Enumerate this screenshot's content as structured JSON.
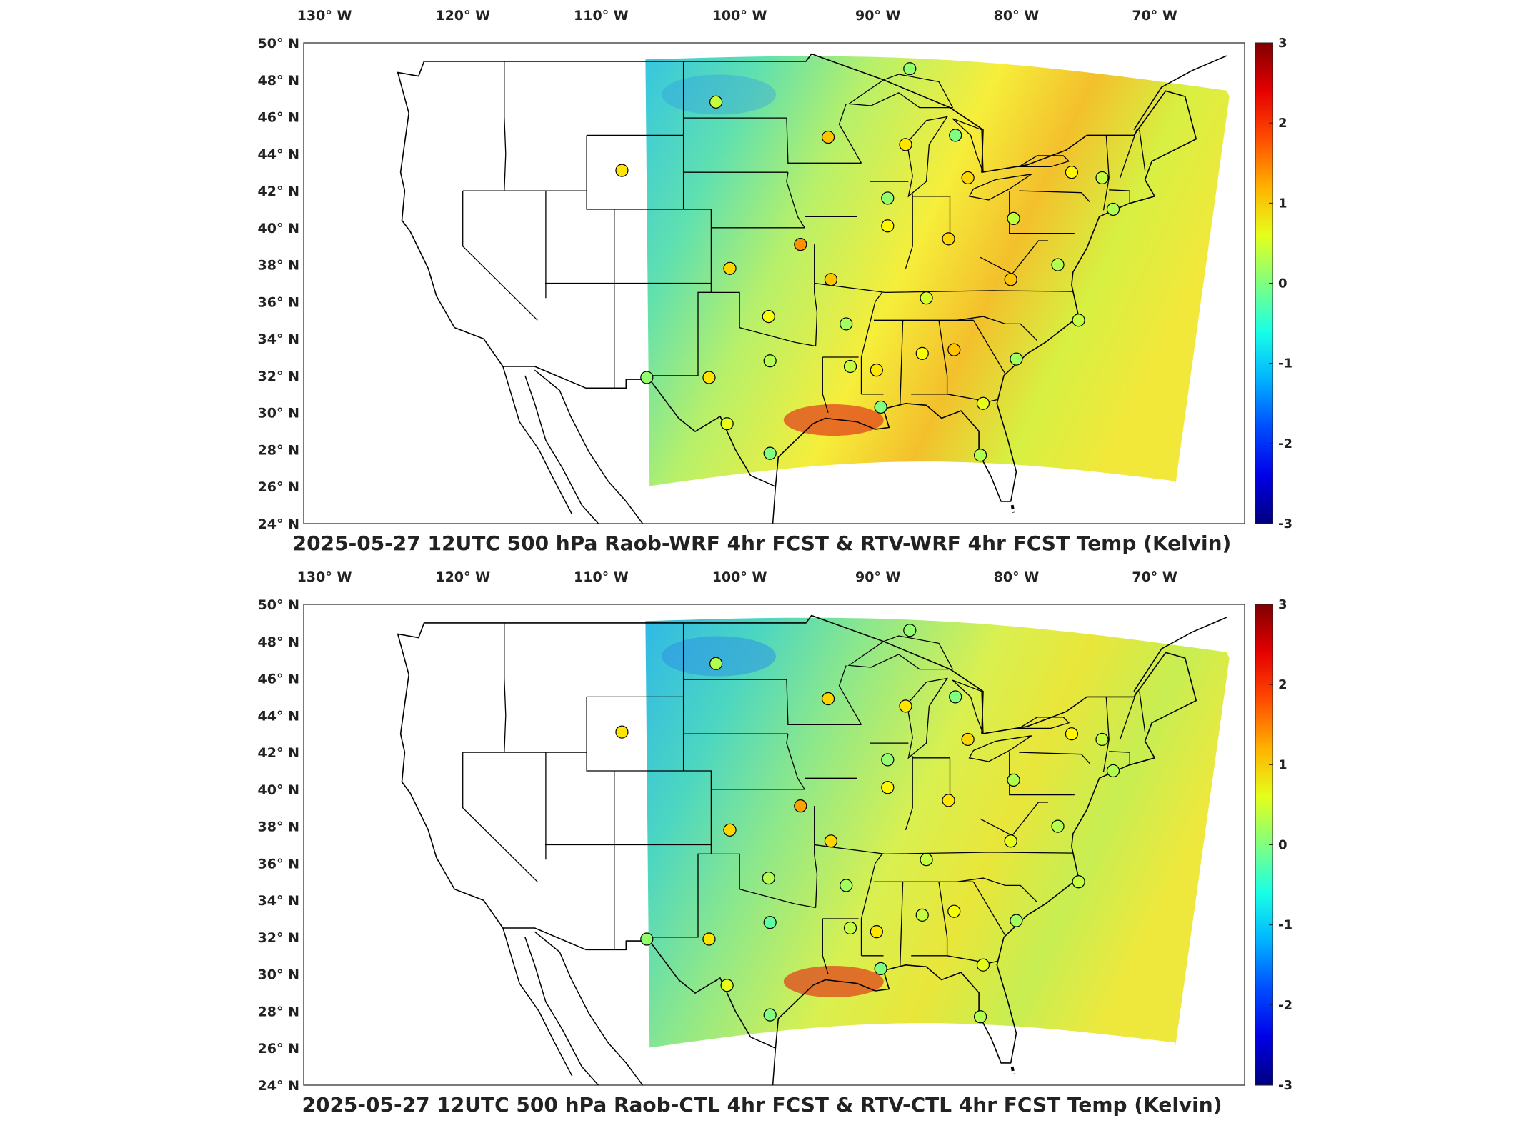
{
  "panels": [
    {
      "title": "2025-05-27 12UTC 500 hPa Raob-WRF 4hr FCST & RTV-WRF 4hr FCST Temp (Kelvin)",
      "stations": [
        {
          "lon": -101.7,
          "lat": 46.8,
          "v": 0.4
        },
        {
          "lon": -108.5,
          "lat": 43.1,
          "v": 0.9
        },
        {
          "lon": -93.6,
          "lat": 44.9,
          "v": 1.1
        },
        {
          "lon": -87.7,
          "lat": 48.6,
          "v": 0.1
        },
        {
          "lon": -88.0,
          "lat": 44.5,
          "v": 0.9
        },
        {
          "lon": -84.4,
          "lat": 45.0,
          "v": 0.0
        },
        {
          "lon": -83.5,
          "lat": 42.7,
          "v": 1.0
        },
        {
          "lon": -76.0,
          "lat": 43.0,
          "v": 0.8
        },
        {
          "lon": -73.8,
          "lat": 42.7,
          "v": 0.4
        },
        {
          "lon": -73.0,
          "lat": 41.0,
          "v": 0.3
        },
        {
          "lon": -89.3,
          "lat": 41.6,
          "v": 0.1
        },
        {
          "lon": -89.3,
          "lat": 40.1,
          "v": 0.8
        },
        {
          "lon": -95.6,
          "lat": 39.1,
          "v": 1.4
        },
        {
          "lon": -100.7,
          "lat": 37.8,
          "v": 1.0
        },
        {
          "lon": -93.4,
          "lat": 37.2,
          "v": 1.1
        },
        {
          "lon": -97.9,
          "lat": 35.2,
          "v": 0.7
        },
        {
          "lon": -92.3,
          "lat": 34.8,
          "v": 0.2
        },
        {
          "lon": -86.5,
          "lat": 36.2,
          "v": 0.5
        },
        {
          "lon": -84.9,
          "lat": 39.4,
          "v": 1.0
        },
        {
          "lon": -80.2,
          "lat": 40.5,
          "v": 0.4
        },
        {
          "lon": -80.4,
          "lat": 37.2,
          "v": 1.1
        },
        {
          "lon": -77.0,
          "lat": 38.0,
          "v": 0.3
        },
        {
          "lon": -75.5,
          "lat": 35.0,
          "v": 0.4
        },
        {
          "lon": -80.0,
          "lat": 32.9,
          "v": 0.2
        },
        {
          "lon": -84.5,
          "lat": 33.4,
          "v": 1.1
        },
        {
          "lon": -86.8,
          "lat": 33.2,
          "v": 0.7
        },
        {
          "lon": -90.1,
          "lat": 32.3,
          "v": 0.9
        },
        {
          "lon": -92.0,
          "lat": 32.5,
          "v": 0.4
        },
        {
          "lon": -97.8,
          "lat": 32.8,
          "v": 0.3
        },
        {
          "lon": -102.2,
          "lat": 31.9,
          "v": 0.9
        },
        {
          "lon": -106.7,
          "lat": 31.9,
          "v": 0.1
        },
        {
          "lon": -100.9,
          "lat": 29.4,
          "v": 0.6
        },
        {
          "lon": -97.8,
          "lat": 27.8,
          "v": 0.0
        },
        {
          "lon": -89.8,
          "lat": 30.3,
          "v": 0.0
        },
        {
          "lon": -82.4,
          "lat": 30.5,
          "v": 0.6
        },
        {
          "lon": -82.6,
          "lat": 27.7,
          "v": 0.3
        }
      ]
    },
    {
      "title": "2025-05-27 12UTC 500 hPa Raob-CTL 4hr FCST & RTV-CTL 4hr FCST Temp (Kelvin)",
      "stations": [
        {
          "lon": -101.7,
          "lat": 46.8,
          "v": 0.3
        },
        {
          "lon": -108.5,
          "lat": 43.1,
          "v": 0.9
        },
        {
          "lon": -93.6,
          "lat": 44.9,
          "v": 1.0
        },
        {
          "lon": -87.7,
          "lat": 48.6,
          "v": 0.1
        },
        {
          "lon": -88.0,
          "lat": 44.5,
          "v": 0.9
        },
        {
          "lon": -84.4,
          "lat": 45.0,
          "v": 0.0
        },
        {
          "lon": -83.5,
          "lat": 42.7,
          "v": 1.0
        },
        {
          "lon": -76.0,
          "lat": 43.0,
          "v": 0.8
        },
        {
          "lon": -73.8,
          "lat": 42.7,
          "v": 0.4
        },
        {
          "lon": -73.0,
          "lat": 41.0,
          "v": 0.3
        },
        {
          "lon": -89.3,
          "lat": 41.6,
          "v": 0.1
        },
        {
          "lon": -89.3,
          "lat": 40.1,
          "v": 0.8
        },
        {
          "lon": -95.6,
          "lat": 39.1,
          "v": 1.3
        },
        {
          "lon": -100.7,
          "lat": 37.8,
          "v": 1.0
        },
        {
          "lon": -93.4,
          "lat": 37.2,
          "v": 1.0
        },
        {
          "lon": -97.9,
          "lat": 35.2,
          "v": 0.3
        },
        {
          "lon": -92.3,
          "lat": 34.8,
          "v": 0.2
        },
        {
          "lon": -86.5,
          "lat": 36.2,
          "v": 0.4
        },
        {
          "lon": -84.9,
          "lat": 39.4,
          "v": 0.9
        },
        {
          "lon": -80.2,
          "lat": 40.5,
          "v": 0.3
        },
        {
          "lon": -80.4,
          "lat": 37.2,
          "v": 0.6
        },
        {
          "lon": -77.0,
          "lat": 38.0,
          "v": 0.3
        },
        {
          "lon": -75.5,
          "lat": 35.0,
          "v": 0.4
        },
        {
          "lon": -80.0,
          "lat": 32.9,
          "v": 0.2
        },
        {
          "lon": -84.5,
          "lat": 33.4,
          "v": 0.7
        },
        {
          "lon": -86.8,
          "lat": 33.2,
          "v": 0.4
        },
        {
          "lon": -90.1,
          "lat": 32.3,
          "v": 0.9
        },
        {
          "lon": -92.0,
          "lat": 32.5,
          "v": 0.4
        },
        {
          "lon": -97.8,
          "lat": 32.8,
          "v": -0.2
        },
        {
          "lon": -102.2,
          "lat": 31.9,
          "v": 0.9
        },
        {
          "lon": -106.7,
          "lat": 31.9,
          "v": 0.1
        },
        {
          "lon": -100.9,
          "lat": 29.4,
          "v": 0.6
        },
        {
          "lon": -97.8,
          "lat": 27.8,
          "v": 0.0
        },
        {
          "lon": -89.8,
          "lat": 30.3,
          "v": 0.0
        },
        {
          "lon": -82.4,
          "lat": 30.5,
          "v": 0.6
        },
        {
          "lon": -82.6,
          "lat": 27.7,
          "v": 0.3
        }
      ]
    }
  ],
  "lon_ticks": [
    "130° W",
    "120° W",
    "110° W",
    "100° W",
    "90° W",
    "80° W",
    "70° W"
  ],
  "lat_ticks": [
    "50° N",
    "48° N",
    "46° N",
    "44° N",
    "42° N",
    "40° N",
    "38° N",
    "36° N",
    "34° N",
    "32° N",
    "30° N",
    "28° N",
    "26° N",
    "24° N"
  ],
  "colorbar": {
    "ticks": [
      "3",
      "2",
      "1",
      "0",
      "-1",
      "-2",
      "-3"
    ]
  },
  "colors": {
    "map_lines": "#000000",
    "station_edge": "#000000",
    "colormap": "jet"
  }
}
